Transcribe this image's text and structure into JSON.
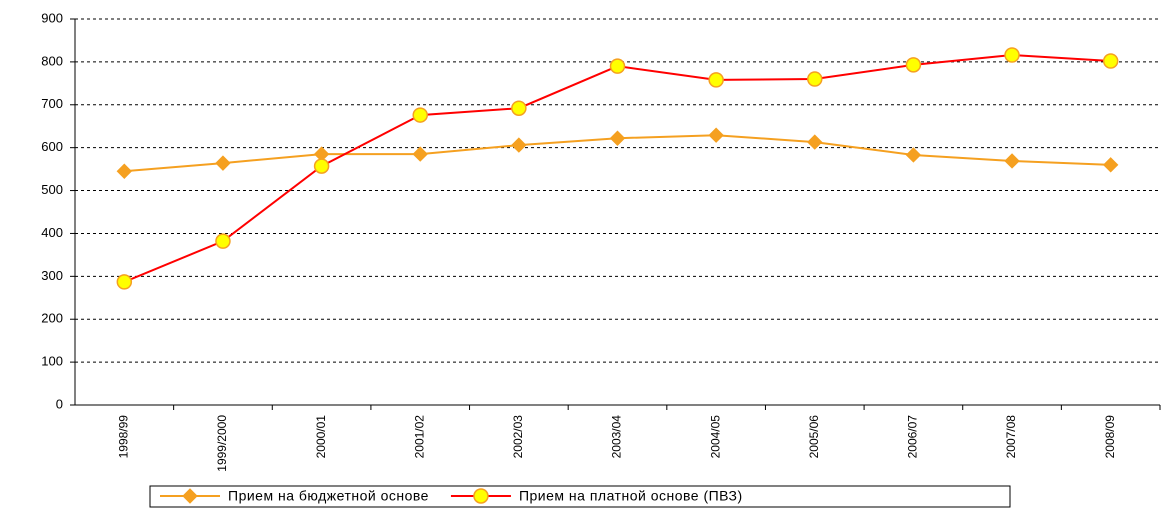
{
  "chart_data": {
    "type": "line",
    "categories": [
      "1998/99",
      "1999/2000",
      "2000/01",
      "2001/02",
      "2002/03",
      "2003/04",
      "2004/05",
      "2005/06",
      "2006/07",
      "2007/08",
      "2008/09"
    ],
    "series": [
      {
        "name": "Прием на бюджетной основе",
        "color": "#f5a020",
        "marker": "diamond",
        "marker_fill": "#f5a020",
        "values": [
          545,
          564,
          585,
          585,
          606,
          622,
          629,
          613,
          583,
          569,
          560
        ]
      },
      {
        "name": "Прием на платной основе (ПВЗ)",
        "color": "#ff0000",
        "marker": "circle",
        "marker_fill": "#ffff00",
        "values": [
          287,
          382,
          557,
          676,
          692,
          790,
          758,
          760,
          793,
          816,
          802
        ]
      }
    ],
    "ylim": [
      0,
      900
    ],
    "yticks": [
      0,
      100,
      200,
      300,
      400,
      500,
      600,
      700,
      800,
      900
    ],
    "grid": true,
    "legend": "bottom"
  }
}
